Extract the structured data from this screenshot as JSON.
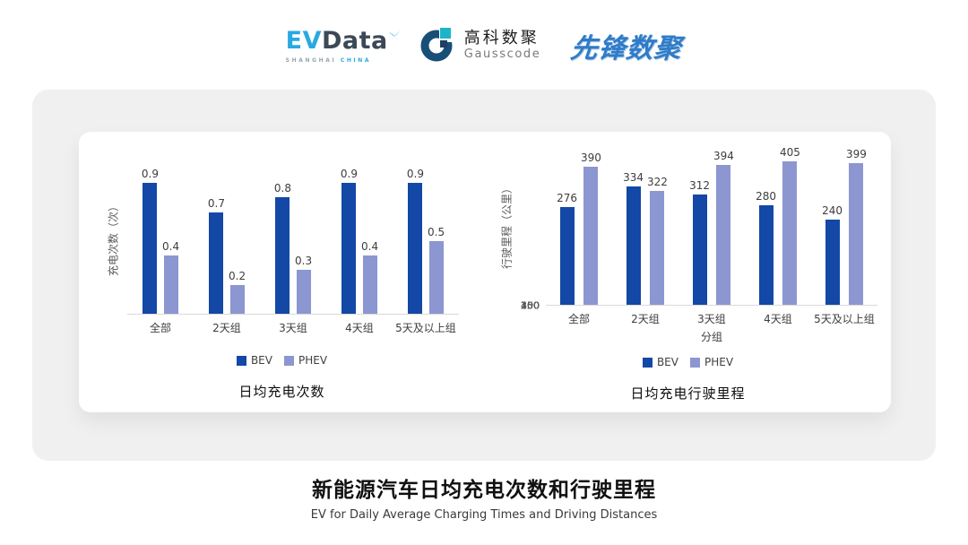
{
  "header": {
    "evdata": {
      "ev": "EV",
      "data": "Data",
      "sub1": "SHANGHAI",
      "sub2": "CHINA"
    },
    "gausscode": {
      "cn": "高科数聚",
      "en": "Gausscode"
    },
    "pioneer": {
      "text": "先锋数聚"
    }
  },
  "colors": {
    "bev": "#1348A6",
    "phev": "#8C96D0",
    "axis_text": "#595959",
    "baseline": "#D9D9D9",
    "evdata_blue": "#29A9E1",
    "evdata_dark": "#3C4856",
    "gauss_ring": "#174F77",
    "gauss_cyan": "#1CB5C8",
    "gauss_navy": "#1F3F66",
    "pioneer_blue": "#2E7CC8"
  },
  "chart_data": [
    {
      "type": "bar",
      "title": "日均充电次数",
      "ylabel": "充电次数（次）",
      "xlabel": "",
      "categories": [
        "全部",
        "2天组",
        "3天组",
        "4天组",
        "5天及以上组"
      ],
      "series": [
        {
          "name": "BEV",
          "color_key": "bev",
          "values": [
            0.9,
            0.7,
            0.8,
            0.9,
            0.9
          ]
        },
        {
          "name": "PHEV",
          "color_key": "phev",
          "values": [
            0.4,
            0.2,
            0.3,
            0.4,
            0.5
          ]
        }
      ],
      "ylim": [
        0,
        1.05
      ],
      "yticks": [],
      "grid": false,
      "legend_position": "bottom",
      "value_labels": true
    },
    {
      "type": "bar",
      "title": "日均充电行驶里程",
      "ylabel": "行驶里程（公里）",
      "xlabel": "分组",
      "categories": [
        "全部",
        "2天组",
        "3天组",
        "4天组",
        "5天及以上组"
      ],
      "series": [
        {
          "name": "BEV",
          "color_key": "bev",
          "values": [
            276,
            334,
            312,
            280,
            240
          ]
        },
        {
          "name": "PHEV",
          "color_key": "phev",
          "values": [
            390,
            322,
            394,
            405,
            399
          ]
        }
      ],
      "ylim": [
        0,
        450
      ],
      "yticks": [
        0,
        50,
        100,
        150,
        200,
        250,
        300,
        350,
        400,
        450
      ],
      "grid": false,
      "legend_position": "bottom",
      "value_labels": true
    }
  ],
  "footer": {
    "title": "新能源汽车日均充电次数和行驶里程",
    "subtitle": "EV for Daily Average Charging Times and Driving Distances"
  }
}
